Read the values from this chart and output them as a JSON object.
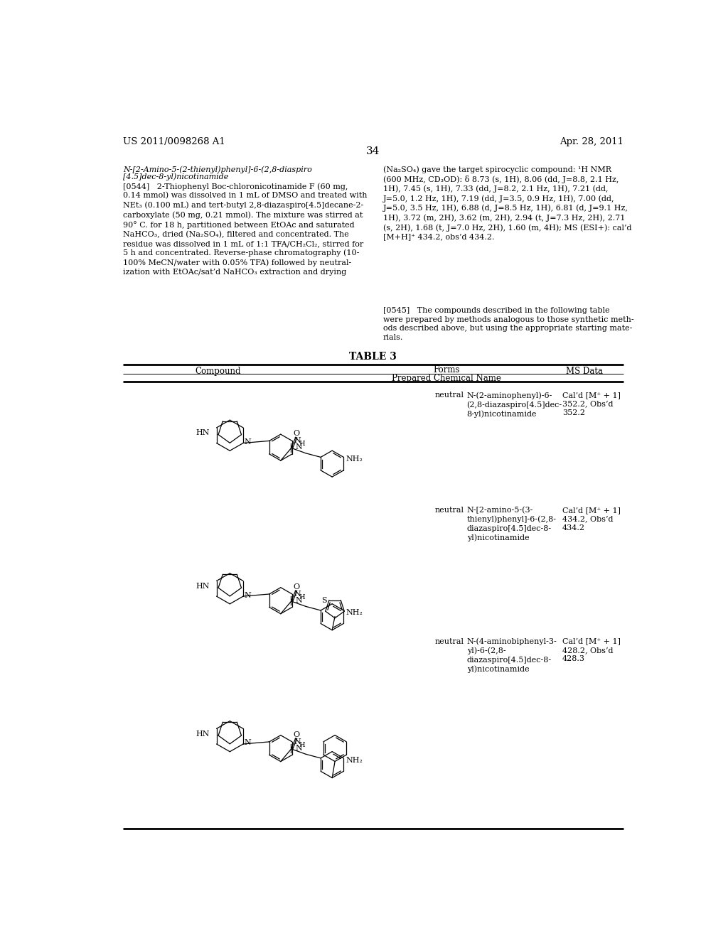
{
  "background_color": "#ffffff",
  "page_number": "34",
  "header_left": "US 2011/0098268 A1",
  "header_right": "Apr. 28, 2011",
  "compound_name_line1": "N-[2-Amino-5-(2-thienyl)phenyl]-6-(2,8-diaspiro",
  "compound_name_line2": "[4.5]dec-8-yl)nicotinamide",
  "para_0544_left": "[0544]   2-Thiophenyl Boc-chloronicotinamide F (60 mg,\n0.14 mmol) was dissolved in 1 mL of DMSO and treated with\nNEt₃ (0.100 mL) and tert-butyl 2,8-diazaspiro[4.5]decane-2-\ncarboxylate (50 mg, 0.21 mmol). The mixture was stirred at\n90° C. for 18 h, partitioned between EtOAc and saturated\nNaHCO₃, dried (Na₂SO₄), filtered and concentrated. The\nresidue was dissolved in 1 mL of 1:1 TFA/CH₂Cl₂, stirred for\n5 h and concentrated. Reverse-phase chromatography (10-\n100% MeCN/water with 0.05% TFA) followed by neutral-\nization with EtOAc/sat’d NaHCO₃ extraction and drying",
  "para_right": "(Na₂SO₄) gave the target spirocyclic compound: ¹H NMR\n(600 MHz, CD₃OD): δ 8.73 (s, 1H), 8.06 (dd, J=8.8, 2.1 Hz,\n1H), 7.45 (s, 1H), 7.33 (dd, J=8.2, 2.1 Hz, 1H), 7.21 (dd,\nJ=5.0, 1.2 Hz, 1H), 7.19 (dd, J=3.5, 0.9 Hz, 1H), 7.00 (dd,\nJ=5.0, 3.5 Hz, 1H), 6.88 (d, J=8.5 Hz, 1H), 6.81 (d, J=9.1 Hz,\n1H), 3.72 (m, 2H), 3.62 (m, 2H), 2.94 (t, J=7.3 Hz, 2H), 2.71\n(s, 2H), 1.68 (t, J=7.0 Hz, 2H), 1.60 (m, 4H); MS (ESI+): cal’d\n[M+H]⁺ 434.2, obs’d 434.2.",
  "para_0545": "[0545]   The compounds described in the following table\nwere prepared by methods analogous to those synthetic meth-\nods described above, but using the appropriate starting mate-\nrials.",
  "table_title": "TABLE 3",
  "table_col1": "Compound",
  "table_col2_header": "Forms",
  "table_col2": "Prepared Chemical Name",
  "table_col3": "MS Data",
  "row1_form": "neutral",
  "row1_name": "N-(2-aminophenyl)-6-\n(2,8-diazaspiro[4.5]dec-\n8-yl)nicotinamide",
  "row1_ms": "Cal’d [M⁺ + 1]\n352.2, Obs’d\n352.2",
  "row2_form": "neutral",
  "row2_name": "N-[2-amino-5-(3-\nthienyl)phenyl]-6-(2,8-\ndiazaspiro[4.5]dec-8-\nyl)nicotinamide",
  "row2_ms": "Cal’d [M⁺ + 1]\n434.2, Obs’d\n434.2",
  "row3_form": "neutral",
  "row3_name": "N-(4-aminobiphenyl-3-\nyl)-6-(2,8-\ndiazaspiro[4.5]dec-8-\nyl)nicotinamide",
  "row3_ms": "Cal’d [M⁺ + 1]\n428.2, Obs’d\n428.3"
}
